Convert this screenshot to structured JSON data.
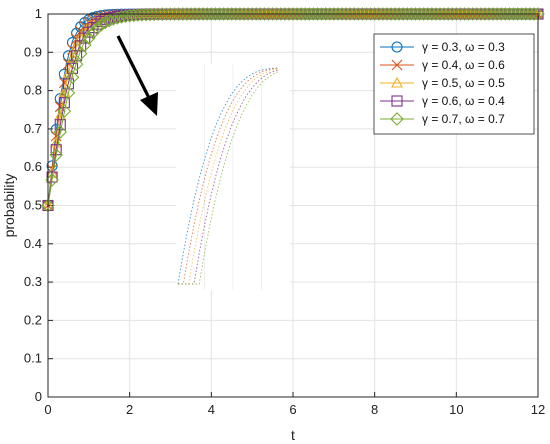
{
  "chart_data": {
    "type": "line",
    "xlabel": "t",
    "ylabel": "probability",
    "xlim": [
      0,
      12
    ],
    "ylim": [
      0,
      1
    ],
    "xticks": [
      "0",
      "2",
      "4",
      "6",
      "8",
      "10",
      "12"
    ],
    "yticks": [
      "0",
      "0.1",
      "0.2",
      "0.3",
      "0.4",
      "0.5",
      "0.6",
      "0.7",
      "0.8",
      "0.9",
      "1"
    ],
    "grid": true,
    "legend_position": "top-right",
    "inset": {
      "present": true,
      "arrow": true,
      "description": "zoomed view of the initial rise"
    },
    "series": [
      {
        "name": "γ = 0.3, ω = 0.3",
        "color": "#0072BD",
        "marker": "circle",
        "rate": 4.2,
        "x": [
          0,
          0.15,
          0.3,
          0.45,
          0.6,
          0.75,
          0.9,
          1.05,
          1.2,
          1.5,
          2,
          3,
          4,
          5,
          6,
          7,
          8,
          9,
          10,
          11,
          12
        ],
        "y": [
          0.5,
          0.65,
          0.78,
          0.87,
          0.93,
          0.96,
          0.98,
          0.99,
          0.995,
          1,
          1,
          1,
          1,
          1,
          1,
          1,
          1,
          1,
          1,
          1,
          1
        ]
      },
      {
        "name": "γ = 0.4, ω = 0.6",
        "color": "#D95319",
        "marker": "cross",
        "rate": 3.8,
        "x": [
          0,
          0.15,
          0.3,
          0.45,
          0.6,
          0.75,
          0.9,
          1.05,
          1.2,
          1.5,
          2,
          3,
          4,
          5,
          6,
          7,
          8,
          9,
          10,
          11,
          12
        ],
        "y": [
          0.5,
          0.64,
          0.76,
          0.85,
          0.91,
          0.95,
          0.97,
          0.985,
          0.99,
          1,
          1,
          1,
          1,
          1,
          1,
          1,
          1,
          1,
          1,
          1,
          1
        ]
      },
      {
        "name": "γ = 0.5, ω = 0.5",
        "color": "#EDB120",
        "marker": "triangle",
        "rate": 3.4,
        "x": [
          0,
          0.15,
          0.3,
          0.45,
          0.6,
          0.75,
          0.9,
          1.05,
          1.2,
          1.5,
          2,
          3,
          4,
          5,
          6,
          7,
          8,
          9,
          10,
          11,
          12
        ],
        "y": [
          0.5,
          0.62,
          0.73,
          0.82,
          0.89,
          0.93,
          0.96,
          0.98,
          0.99,
          1,
          1,
          1,
          1,
          1,
          1,
          1,
          1,
          1,
          1,
          1,
          1
        ]
      },
      {
        "name": "γ = 0.6, ω = 0.4",
        "color": "#7E2F8E",
        "marker": "square",
        "rate": 3.0,
        "x": [
          0,
          0.15,
          0.3,
          0.45,
          0.6,
          0.75,
          0.9,
          1.05,
          1.2,
          1.5,
          2,
          3,
          4,
          5,
          6,
          7,
          8,
          9,
          10,
          11,
          12
        ],
        "y": [
          0.5,
          0.61,
          0.71,
          0.8,
          0.86,
          0.91,
          0.95,
          0.97,
          0.98,
          0.995,
          1,
          1,
          1,
          1,
          1,
          1,
          1,
          1,
          1,
          1,
          1
        ]
      },
      {
        "name": "γ = 0.7, ω = 0.7",
        "color": "#77AC30",
        "marker": "diamond",
        "rate": 2.7,
        "x": [
          0,
          0.15,
          0.3,
          0.45,
          0.6,
          0.75,
          0.9,
          1.05,
          1.2,
          1.5,
          2,
          3,
          4,
          5,
          6,
          7,
          8,
          9,
          10,
          11,
          12
        ],
        "y": [
          0.5,
          0.6,
          0.69,
          0.77,
          0.84,
          0.89,
          0.93,
          0.96,
          0.97,
          0.99,
          1,
          1,
          1,
          1,
          1,
          1,
          1,
          1,
          1,
          1,
          1
        ]
      }
    ]
  }
}
